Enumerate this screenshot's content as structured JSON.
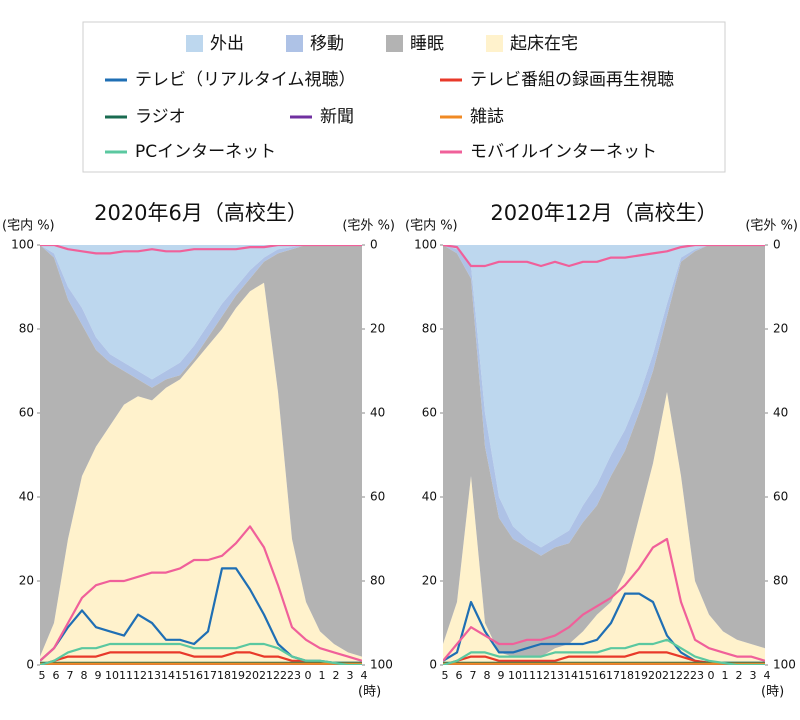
{
  "chart_data": [
    {
      "type": "area-line",
      "title": "2020年6月（高校生）",
      "ylabel": "(宅内 %)",
      "y2label": "(宅外 %)",
      "xlabel": "(時)",
      "categories": [
        "5",
        "6",
        "7",
        "8",
        "9",
        "10",
        "11",
        "12",
        "13",
        "14",
        "15",
        "16",
        "17",
        "18",
        "19",
        "20",
        "21",
        "22",
        "23",
        "0",
        "1",
        "2",
        "3",
        "4"
      ],
      "ylim": [
        0,
        100
      ],
      "yticks": [
        0,
        20,
        40,
        60,
        80,
        100
      ],
      "y2lim": [
        100,
        0
      ],
      "y2ticks": [
        0,
        20,
        40,
        60,
        80,
        100
      ],
      "series": [
        {
          "name": "外出",
          "mark": "area",
          "axis": "y2",
          "color": "#bdd7ee",
          "values": [
            0,
            2,
            10,
            15,
            22,
            26,
            28,
            30,
            32,
            30,
            28,
            24,
            19,
            14,
            10,
            6,
            3,
            1,
            0.5,
            0,
            0,
            0,
            0,
            0
          ]
        },
        {
          "name": "移動",
          "mark": "area",
          "axis": "y2",
          "color": "#aec2e6",
          "values": [
            0,
            1,
            3,
            4,
            3,
            2,
            2,
            2,
            2,
            2,
            3,
            3,
            3,
            3,
            2,
            2,
            1,
            1,
            0.5,
            0,
            0,
            0,
            0,
            0
          ]
        },
        {
          "name": "睡眠",
          "mark": "area",
          "color": "#b3b3b3",
          "values": [
            98,
            87,
            57,
            36,
            23,
            15,
            8,
            4,
            3,
            2,
            1,
            1,
            2,
            3,
            3,
            3,
            5,
            33,
            69,
            85,
            92,
            95,
            97,
            98
          ]
        },
        {
          "name": "起床在宅",
          "mark": "area",
          "color": "#fff2cc",
          "values": [
            2,
            10,
            30,
            45,
            52,
            57,
            62,
            64,
            63,
            66,
            68,
            72,
            76,
            80,
            85,
            89,
            91,
            65,
            30,
            15,
            8,
            5,
            3,
            2
          ]
        },
        {
          "name": "テレビ（リアルタイム視聴）",
          "mark": "line",
          "color": "#1f6fb4",
          "values": [
            1,
            4,
            9,
            13,
            9,
            8,
            7,
            12,
            10,
            6,
            6,
            5,
            8,
            23,
            23,
            18,
            12,
            5,
            2,
            1,
            1,
            0.5,
            0.5,
            0.5
          ]
        },
        {
          "name": "テレビ番組の録画再生視聴",
          "mark": "line",
          "color": "#e8392a",
          "values": [
            0,
            1,
            2,
            2,
            2,
            3,
            3,
            3,
            3,
            3,
            3,
            2,
            2,
            2,
            3,
            3,
            2,
            2,
            1,
            1,
            0.5,
            0,
            0,
            0
          ]
        },
        {
          "name": "ラジオ",
          "mark": "line",
          "color": "#1a6b50",
          "values": [
            0.5,
            0.5,
            0.5,
            0.5,
            0.5,
            0.5,
            0.5,
            0.5,
            0.5,
            0.5,
            0.5,
            0.5,
            0.5,
            0.5,
            0.5,
            0.5,
            0.5,
            0.5,
            0.5,
            0.5,
            0.5,
            0.5,
            0.5,
            0.5
          ]
        },
        {
          "name": "新聞",
          "mark": "line",
          "color": "#7030a0",
          "values": [
            0.2,
            0.2,
            0.2,
            0.2,
            0.2,
            0.2,
            0.2,
            0.2,
            0.2,
            0.2,
            0.2,
            0.2,
            0.2,
            0.2,
            0.2,
            0.2,
            0.2,
            0.2,
            0.2,
            0.2,
            0.2,
            0.2,
            0.2,
            0.2
          ]
        },
        {
          "name": "雑誌",
          "mark": "line",
          "color": "#f08a24",
          "values": [
            0.3,
            0.3,
            0.3,
            0.3,
            0.3,
            0.3,
            0.3,
            0.3,
            0.3,
            0.3,
            0.3,
            0.3,
            0.3,
            0.3,
            0.3,
            0.3,
            0.3,
            0.3,
            0.3,
            0.3,
            0.3,
            0.3,
            0.3,
            0.3
          ]
        },
        {
          "name": "PCインターネット",
          "mark": "line",
          "color": "#5bc8a0",
          "values": [
            0,
            1,
            3,
            4,
            4,
            5,
            5,
            5,
            5,
            5,
            5,
            4,
            4,
            4,
            4,
            5,
            5,
            4,
            2,
            1,
            1,
            0.5,
            0,
            0
          ]
        },
        {
          "name": "モバイルインターネット",
          "mark": "line",
          "color": "#f0609a",
          "values": [
            1,
            4,
            10,
            16,
            19,
            20,
            20,
            21,
            22,
            22,
            23,
            25,
            25,
            26,
            29,
            33,
            28,
            19,
            9,
            6,
            4,
            3,
            2,
            1
          ]
        },
        {
          "mark": "line",
          "axis": "y2",
          "color": "#f0609a",
          "values": [
            0,
            0,
            1,
            1.5,
            2,
            2,
            1.5,
            1.5,
            1,
            1.5,
            1.5,
            1,
            1,
            1,
            1,
            0.5,
            0.5,
            0,
            0,
            0,
            0,
            0,
            0,
            0
          ]
        }
      ]
    },
    {
      "type": "area-line",
      "title": "2020年12月（高校生）",
      "ylabel": "(宅内 %)",
      "y2label": "(宅外 %)",
      "xlabel": "(時)",
      "categories": [
        "5",
        "6",
        "7",
        "8",
        "9",
        "10",
        "11",
        "12",
        "13",
        "14",
        "15",
        "16",
        "17",
        "18",
        "19",
        "20",
        "21",
        "22",
        "23",
        "0",
        "1",
        "2",
        "3",
        "4"
      ],
      "ylim": [
        0,
        100
      ],
      "yticks": [
        0,
        20,
        40,
        60,
        80,
        100
      ],
      "y2lim": [
        100,
        0
      ],
      "y2ticks": [
        0,
        20,
        40,
        60,
        80,
        100
      ],
      "series": [
        {
          "mark": "area",
          "axis": "y2",
          "color": "#bdd7ee",
          "values": [
            0,
            1,
            5,
            40,
            60,
            67,
            70,
            72,
            70,
            68,
            62,
            57,
            50,
            44,
            36,
            26,
            14,
            3,
            1,
            0,
            0,
            0,
            0,
            0
          ]
        },
        {
          "mark": "area",
          "axis": "y2",
          "color": "#aec2e6",
          "values": [
            0,
            1,
            3,
            8,
            5,
            3,
            2,
            2,
            2,
            3,
            4,
            5,
            5,
            5,
            4,
            4,
            3,
            1,
            0.5,
            0,
            0,
            0,
            0,
            0
          ]
        },
        {
          "mark": "area",
          "color": "#b3b3b3",
          "values": [
            95,
            83,
            47,
            42,
            32,
            28,
            26,
            24,
            24,
            24,
            26,
            26,
            30,
            29,
            25,
            22,
            18,
            51,
            78.5,
            88,
            92,
            94,
            95,
            96
          ]
        },
        {
          "mark": "area",
          "color": "#fff2cc",
          "values": [
            5,
            15,
            45,
            10,
            3,
            2,
            2,
            2,
            4,
            5,
            8,
            12,
            15,
            22,
            35,
            48,
            65,
            45,
            20,
            12,
            8,
            6,
            5,
            4
          ]
        },
        {
          "mark": "line",
          "color": "#1f6fb4",
          "values": [
            1,
            3,
            15,
            8,
            3,
            3,
            4,
            5,
            5,
            5,
            5,
            6,
            10,
            17,
            17,
            15,
            7,
            3,
            1,
            0.5,
            0.5,
            0.5,
            0.5,
            0.5
          ]
        },
        {
          "mark": "line",
          "color": "#e8392a",
          "values": [
            0,
            1,
            2,
            2,
            1,
            1,
            1,
            1,
            1,
            2,
            2,
            2,
            2,
            2,
            3,
            3,
            3,
            2,
            1,
            0.5,
            0,
            0,
            0,
            0
          ]
        },
        {
          "mark": "line",
          "color": "#1a6b50",
          "values": [
            0.5,
            0.5,
            0.5,
            0.5,
            0.5,
            0.5,
            0.5,
            0.5,
            0.5,
            0.5,
            0.5,
            0.5,
            0.5,
            0.5,
            0.5,
            0.5,
            0.5,
            0.5,
            0.5,
            0.5,
            0.5,
            0.5,
            0.5,
            0.5
          ]
        },
        {
          "mark": "line",
          "color": "#7030a0",
          "values": [
            0.2,
            0.2,
            0.2,
            0.2,
            0.2,
            0.2,
            0.2,
            0.2,
            0.2,
            0.2,
            0.2,
            0.2,
            0.2,
            0.2,
            0.2,
            0.2,
            0.2,
            0.2,
            0.2,
            0.2,
            0.2,
            0.2,
            0.2,
            0.2
          ]
        },
        {
          "mark": "line",
          "color": "#f08a24",
          "values": [
            0.3,
            0.3,
            0.3,
            0.3,
            0.3,
            0.3,
            0.3,
            0.3,
            0.3,
            0.3,
            0.3,
            0.3,
            0.3,
            0.3,
            0.3,
            0.3,
            0.3,
            0.3,
            0.3,
            0.3,
            0.3,
            0.3,
            0.3,
            0.3
          ]
        },
        {
          "mark": "line",
          "color": "#5bc8a0",
          "values": [
            0,
            1,
            3,
            3,
            2,
            2,
            2,
            2,
            3,
            3,
            3,
            3,
            4,
            4,
            5,
            5,
            6,
            4,
            2,
            1,
            0.5,
            0,
            0,
            0
          ]
        },
        {
          "mark": "line",
          "color": "#f0609a",
          "values": [
            1,
            5,
            9,
            7,
            5,
            5,
            6,
            6,
            7,
            9,
            12,
            14,
            16,
            19,
            23,
            28,
            30,
            15,
            6,
            4,
            3,
            2,
            2,
            1
          ]
        },
        {
          "mark": "line",
          "axis": "y2",
          "color": "#f0609a",
          "values": [
            0,
            0.5,
            5,
            5,
            4,
            4,
            4,
            5,
            4,
            5,
            4,
            4,
            3,
            3,
            2.5,
            2,
            1.5,
            0.5,
            0,
            0,
            0,
            0,
            0,
            0
          ]
        }
      ]
    }
  ]
}
